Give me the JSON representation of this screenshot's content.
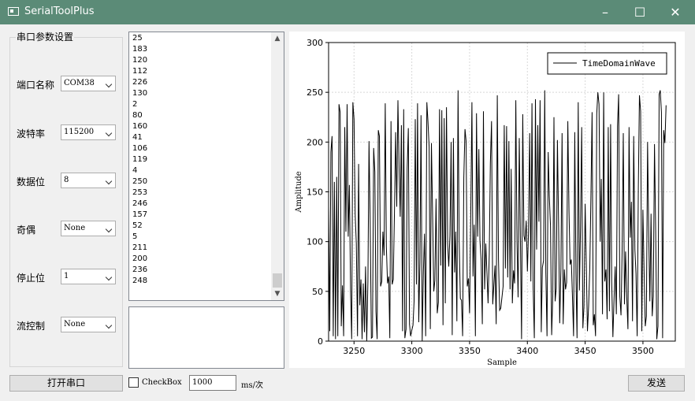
{
  "window": {
    "title": "SerialToolPlus",
    "minimize_icon": "minimize-icon",
    "maximize_icon": "maximize-icon",
    "close_icon": "close-icon"
  },
  "settings": {
    "group_title": "串口参数设置",
    "port_label": "端口名称",
    "port_value": "COM38",
    "baud_label": "波特率",
    "baud_value": "115200",
    "databits_label": "数据位",
    "databits_value": "8",
    "parity_label": "奇偶",
    "parity_value": "None",
    "stopbits_label": "停止位",
    "stopbits_value": "1",
    "flow_label": "流控制",
    "flow_value": "None"
  },
  "received": [
    "25",
    "183",
    "120",
    "112",
    "226",
    "130",
    "2",
    "80",
    "160",
    "41",
    "106",
    "119",
    "4",
    "250",
    "253",
    "246",
    "157",
    "52",
    "5",
    "211",
    "200",
    "236",
    "248"
  ],
  "bottom": {
    "open_button": "打开串口",
    "checkbox_label": "CheckBox",
    "interval_value": "1000",
    "interval_unit": "ms/次",
    "send_button": "发送"
  },
  "chart_data": {
    "type": "line",
    "xlabel": "Sample",
    "ylabel": "Amplitude",
    "xlim": [
      3228,
      3528
    ],
    "ylim": [
      0,
      300
    ],
    "x_ticks": [
      3250,
      3300,
      3350,
      3400,
      3450,
      3500
    ],
    "y_ticks": [
      0,
      50,
      100,
      150,
      200,
      250,
      300
    ],
    "grid": true,
    "legend": "top-right",
    "series": [
      {
        "name": "TimeDomainWave",
        "color": "#000000",
        "x_start": 3228,
        "values": [
          135,
          10,
          190,
          206,
          5,
          160,
          2,
          165,
          5,
          238,
          230,
          15,
          56,
          5,
          215,
          110,
          238,
          105,
          157,
          50,
          2,
          240,
          223,
          128,
          98,
          5,
          178,
          36,
          62,
          2,
          58,
          9,
          75,
          0,
          60,
          201,
          119,
          3,
          4,
          194,
          170,
          30,
          2,
          212,
          206,
          55,
          60,
          110,
          86,
          239,
          95,
          58,
          65,
          3,
          221,
          57,
          62,
          130,
          210,
          135,
          242,
          172,
          125,
          217,
          10,
          233,
          3,
          12,
          173,
          214,
          17,
          5,
          11,
          16,
          40,
          223,
          57,
          239,
          19,
          79,
          227,
          0,
          69,
          108,
          5,
          240,
          221,
          195,
          12,
          199,
          127,
          50,
          61,
          143,
          28,
          39,
          233,
          76,
          232,
          16,
          224,
          38,
          235,
          98,
          75,
          106,
          200,
          6,
          204,
          69,
          110,
          20,
          252,
          101,
          43,
          41,
          5,
          164,
          213,
          201,
          55,
          63,
          28,
          125,
          240,
          65,
          117,
          5,
          229,
          105,
          193,
          101,
          81,
          17,
          231,
          52,
          98,
          70,
          38,
          87,
          179,
          221,
          37,
          56,
          76,
          17,
          247,
          82,
          31,
          33,
          44,
          55,
          217,
          73,
          216,
          64,
          201,
          52,
          173,
          38,
          71,
          58,
          242,
          100,
          44,
          204,
          97,
          2,
          228,
          106,
          100,
          121,
          70,
          110,
          209,
          60,
          239,
          54,
          3,
          243,
          92,
          217,
          120,
          242,
          9,
          74,
          81,
          252,
          69,
          5,
          190,
          146,
          116,
          6,
          45,
          225,
          40,
          53,
          202,
          116,
          18,
          72,
          209,
          17,
          72,
          52,
          59,
          221,
          130,
          77,
          82,
          44,
          5,
          210,
          67,
          3,
          240,
          51,
          114,
          215,
          13,
          35,
          138,
          75,
          10,
          35,
          74,
          144,
          230,
          16,
          27,
          5,
          228,
          250,
          238,
          100,
          163,
          27,
          250,
          60,
          72,
          22,
          215,
          30,
          218,
          60,
          4,
          43,
          75,
          27,
          216,
          248,
          45,
          26,
          90,
          209,
          37,
          90,
          44,
          12,
          215,
          104,
          140,
          20,
          206,
          92,
          68,
          5,
          155,
          247,
          231,
          10,
          132,
          69,
          15,
          25,
          200,
          107,
          40,
          128,
          25,
          45,
          198,
          110,
          2,
          15,
          248,
          252,
          230,
          3,
          212,
          199,
          237
        ]
      }
    ]
  }
}
